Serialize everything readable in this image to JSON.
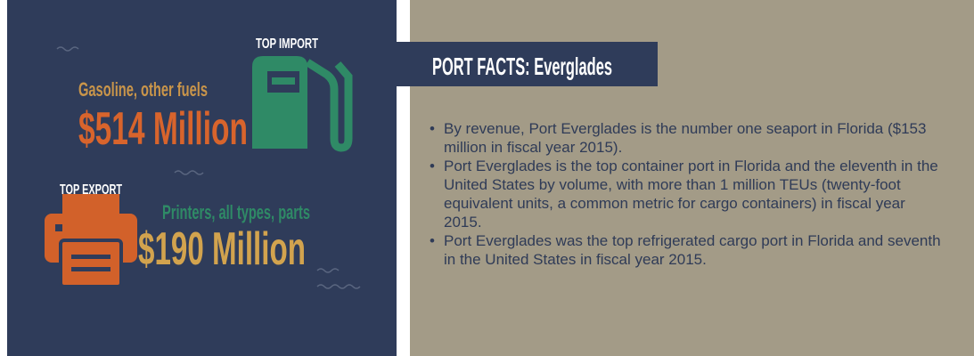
{
  "import": {
    "label": "TOP IMPORT",
    "description": "Gasoline, other fuels",
    "value": "$514 Million"
  },
  "export": {
    "label": "TOP EXPORT",
    "description": "Printers, all types, parts",
    "value": "$190 Million"
  },
  "facts": {
    "title": "PORT FACTS: Everglades",
    "bullets": [
      "By revenue, Port Everglades is the number one seaport in Florida ($153 million in fiscal year 2015).",
      "Port Everglades is the top container port in Florida and the eleventh in the United States by volume, with more than 1 million TEUs (twenty-foot equivalent units, a common metric for cargo containers) in fiscal year 2015.",
      "Port Everglades was the top refrigerated cargo port in Florida and seventh in the United States in fiscal year 2015."
    ]
  }
}
